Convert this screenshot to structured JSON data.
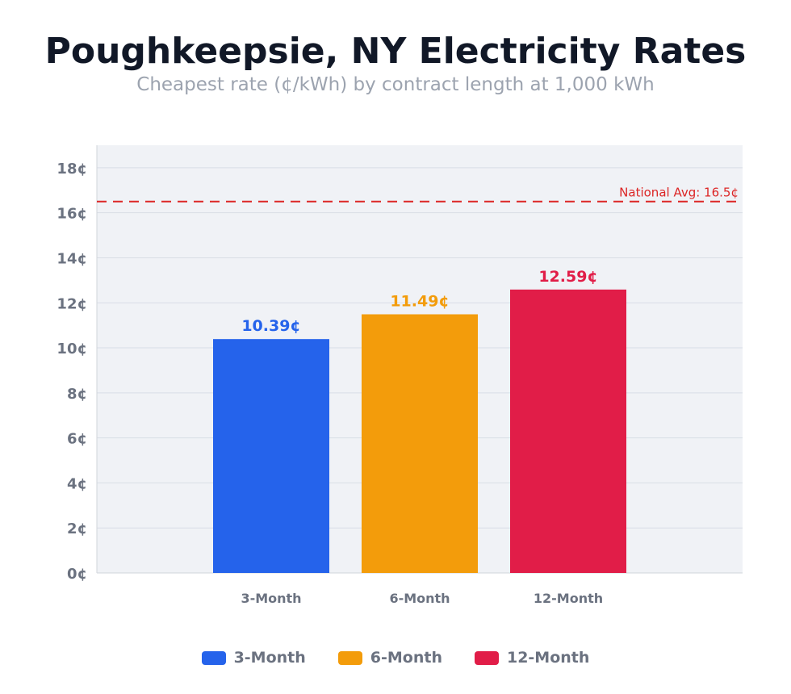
{
  "chart_data": {
    "type": "bar",
    "title": "Poughkeepsie, NY Electricity Rates",
    "subtitle": "Cheapest rate (¢/kWh) by contract length at 1,000 kWh",
    "categories": [
      "3-Month",
      "6-Month",
      "12-Month"
    ],
    "values": [
      10.39,
      11.49,
      12.59
    ],
    "data_labels": [
      "10.39¢",
      "11.49¢",
      "12.59¢"
    ],
    "colors": [
      "#2563eb",
      "#f39c0b",
      "#e11d48"
    ],
    "ylim": [
      0,
      19
    ],
    "yticks": [
      0,
      2,
      4,
      6,
      8,
      10,
      12,
      14,
      16,
      18
    ],
    "ytick_labels": [
      "0¢",
      "2¢",
      "4¢",
      "6¢",
      "8¢",
      "10¢",
      "12¢",
      "14¢",
      "16¢",
      "18¢"
    ],
    "grid": true,
    "reference_line": {
      "value": 16.5,
      "label": "National Avg: 16.5¢",
      "color": "#dc2626",
      "style": "dashed"
    },
    "legend": {
      "placement": "bottom",
      "entries": [
        "3-Month",
        "6-Month",
        "12-Month"
      ]
    },
    "xlabel": "",
    "ylabel": ""
  }
}
